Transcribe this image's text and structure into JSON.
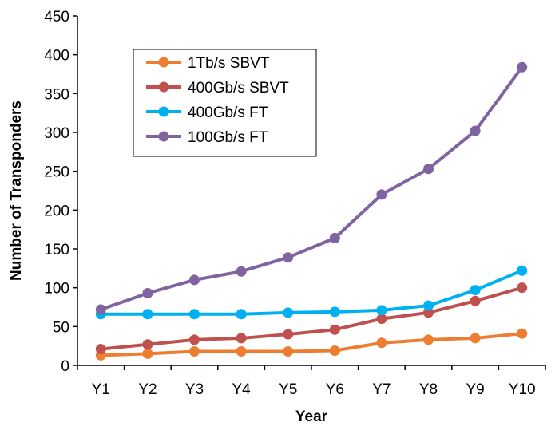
{
  "chart_data": {
    "type": "line",
    "title": "",
    "xlabel": "Year",
    "ylabel": "Number of Transponders",
    "categories": [
      "Y1",
      "Y2",
      "Y3",
      "Y4",
      "Y5",
      "Y6",
      "Y7",
      "Y8",
      "Y9",
      "Y10"
    ],
    "ylim": [
      0,
      450
    ],
    "yticks": [
      0,
      50,
      100,
      150,
      200,
      250,
      300,
      350,
      400,
      450
    ],
    "grid": false,
    "legend_position": "top-left",
    "series": [
      {
        "name": "1Tb/s SBVT",
        "color": "#ED7D31",
        "values": [
          13,
          15,
          18,
          18,
          18,
          19,
          29,
          33,
          35,
          41
        ]
      },
      {
        "name": "400Gb/s SBVT",
        "color": "#C0504D",
        "values": [
          21,
          27,
          33,
          35,
          40,
          46,
          60,
          68,
          83,
          100
        ]
      },
      {
        "name": "400Gb/s FT",
        "color": "#00B0F0",
        "values": [
          66,
          66,
          66,
          66,
          68,
          69,
          71,
          77,
          97,
          122
        ]
      },
      {
        "name": "100Gb/s FT",
        "color": "#8064A2",
        "values": [
          72,
          93,
          110,
          121,
          139,
          164,
          220,
          253,
          302,
          384
        ]
      }
    ]
  }
}
